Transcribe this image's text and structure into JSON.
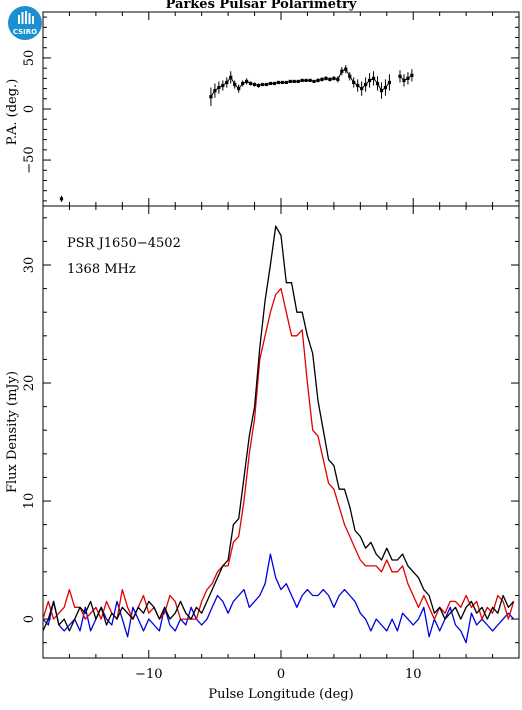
{
  "figure": {
    "title": "Parkes Pulsar Polarimetry",
    "logo_text": "CSIRO"
  },
  "colors": {
    "total": "#000000",
    "linear": "#e00000",
    "circular": "#0000e0",
    "logo": "#1b8fd0"
  },
  "chart_data": [
    {
      "type": "scatter",
      "panel": "polarization-angle",
      "xlabel": "",
      "ylabel": "P.A. (deg.)",
      "xlim": [
        -18,
        18
      ],
      "ylim": [
        -95,
        95
      ],
      "yticks": [
        -50,
        0,
        50
      ],
      "grid": false,
      "points": [
        {
          "x": -16.6,
          "y": -88,
          "err": 3
        },
        {
          "x": -5.3,
          "y": 12,
          "err": 9
        },
        {
          "x": -5.0,
          "y": 18,
          "err": 7
        },
        {
          "x": -4.7,
          "y": 21,
          "err": 6
        },
        {
          "x": -4.4,
          "y": 23,
          "err": 5
        },
        {
          "x": -4.1,
          "y": 26,
          "err": 5
        },
        {
          "x": -3.8,
          "y": 31,
          "err": 6
        },
        {
          "x": -3.5,
          "y": 24,
          "err": 4
        },
        {
          "x": -3.2,
          "y": 20,
          "err": 4
        },
        {
          "x": -2.9,
          "y": 25,
          "err": 3
        },
        {
          "x": -2.6,
          "y": 27,
          "err": 3
        },
        {
          "x": -2.3,
          "y": 25,
          "err": 2
        },
        {
          "x": -2.0,
          "y": 24,
          "err": 2
        },
        {
          "x": -1.7,
          "y": 23,
          "err": 2
        },
        {
          "x": -1.4,
          "y": 24,
          "err": 1
        },
        {
          "x": -1.1,
          "y": 24,
          "err": 1
        },
        {
          "x": -0.8,
          "y": 25,
          "err": 1
        },
        {
          "x": -0.5,
          "y": 25,
          "err": 1
        },
        {
          "x": -0.2,
          "y": 26,
          "err": 1
        },
        {
          "x": 0.1,
          "y": 26,
          "err": 1
        },
        {
          "x": 0.4,
          "y": 26,
          "err": 1
        },
        {
          "x": 0.7,
          "y": 27,
          "err": 1
        },
        {
          "x": 1.0,
          "y": 27,
          "err": 1
        },
        {
          "x": 1.3,
          "y": 27,
          "err": 1
        },
        {
          "x": 1.6,
          "y": 28,
          "err": 1
        },
        {
          "x": 1.9,
          "y": 28,
          "err": 1
        },
        {
          "x": 2.2,
          "y": 28,
          "err": 1
        },
        {
          "x": 2.5,
          "y": 27,
          "err": 1
        },
        {
          "x": 2.8,
          "y": 28,
          "err": 2
        },
        {
          "x": 3.1,
          "y": 29,
          "err": 2
        },
        {
          "x": 3.4,
          "y": 30,
          "err": 2
        },
        {
          "x": 3.7,
          "y": 29,
          "err": 2
        },
        {
          "x": 4.0,
          "y": 30,
          "err": 2
        },
        {
          "x": 4.3,
          "y": 29,
          "err": 3
        },
        {
          "x": 4.6,
          "y": 37,
          "err": 4
        },
        {
          "x": 4.9,
          "y": 39,
          "err": 4
        },
        {
          "x": 5.2,
          "y": 32,
          "err": 4
        },
        {
          "x": 5.5,
          "y": 26,
          "err": 5
        },
        {
          "x": 5.8,
          "y": 23,
          "err": 6
        },
        {
          "x": 6.1,
          "y": 20,
          "err": 7
        },
        {
          "x": 6.4,
          "y": 24,
          "err": 7
        },
        {
          "x": 6.7,
          "y": 28,
          "err": 7
        },
        {
          "x": 7.0,
          "y": 30,
          "err": 7
        },
        {
          "x": 7.3,
          "y": 25,
          "err": 7
        },
        {
          "x": 7.6,
          "y": 18,
          "err": 8
        },
        {
          "x": 7.9,
          "y": 21,
          "err": 8
        },
        {
          "x": 8.2,
          "y": 26,
          "err": 8
        },
        {
          "x": 9.0,
          "y": 32,
          "err": 6
        },
        {
          "x": 9.3,
          "y": 28,
          "err": 6
        },
        {
          "x": 9.6,
          "y": 30,
          "err": 6
        },
        {
          "x": 9.9,
          "y": 33,
          "err": 6
        }
      ],
      "connected_runs": [
        [
          1,
          46
        ],
        [
          47,
          50
        ]
      ]
    },
    {
      "type": "line",
      "panel": "flux-profile",
      "xlabel": "Pulse Longitude (deg)",
      "ylabel": "Flux Density (mJy)",
      "xlim": [
        -18,
        18
      ],
      "ylim": [
        -3.3,
        35
      ],
      "xticks": [
        -10,
        0,
        10
      ],
      "yticks": [
        0,
        10,
        20,
        30
      ],
      "grid": false,
      "annotations": [
        "PSR J1650−4502",
        "1368 MHz"
      ],
      "x_start": -18,
      "x_step": 0.4,
      "series": [
        {
          "key": "total",
          "values": [
            -1,
            0,
            1.5,
            -0.5,
            0,
            -1,
            0,
            1,
            0.5,
            1.5,
            0,
            1,
            -0.5,
            0.5,
            0,
            1,
            0.5,
            0,
            1,
            0.5,
            1.5,
            1,
            0,
            1,
            0,
            0.5,
            1.5,
            0.5,
            0,
            1,
            0.5,
            1.5,
            2.5,
            3.5,
            4.5,
            5,
            8,
            8.5,
            12,
            15.5,
            18,
            23,
            27,
            30,
            33.3,
            32.5,
            28.5,
            28.5,
            26,
            26,
            24,
            22.5,
            18.5,
            16,
            13.5,
            13,
            11,
            11,
            9.5,
            7.5,
            7,
            6,
            6.5,
            5.5,
            5,
            6,
            5,
            5,
            5.5,
            4.5,
            4,
            3.5,
            2.5,
            2,
            0.5,
            1,
            0,
            0.5,
            1,
            0,
            1,
            1.5,
            0.5,
            1,
            0,
            1,
            0.5,
            2,
            1,
            1.5
          ]
        },
        {
          "key": "linear",
          "values": [
            0,
            1.5,
            0,
            0.5,
            1,
            2.5,
            1,
            1,
            0,
            0.5,
            1,
            0,
            1.5,
            0.5,
            0,
            2.5,
            1,
            0,
            1,
            2,
            0.5,
            1,
            0,
            0.5,
            2,
            1.5,
            0,
            0,
            0,
            0,
            1.5,
            2.5,
            3,
            4,
            4.5,
            4.5,
            6.5,
            7,
            10,
            14,
            17,
            22,
            24,
            26,
            27.5,
            28,
            26,
            24,
            24,
            24.5,
            20,
            16,
            15.5,
            13.5,
            11.5,
            11,
            9.5,
            8,
            7,
            6,
            5,
            4.5,
            4.5,
            4.5,
            4,
            5,
            4,
            4,
            4.5,
            3,
            2,
            1,
            2,
            1,
            0,
            1,
            0.5,
            1.5,
            1.5,
            1,
            2,
            1,
            1.5,
            0,
            1,
            0.5,
            2,
            1.5,
            0,
            1.5
          ]
        },
        {
          "key": "circular",
          "values": [
            0,
            -0.5,
            1.5,
            -0.5,
            -1,
            -0.5,
            0,
            -1,
            1,
            -1,
            0,
            1,
            0,
            -0.5,
            1.5,
            0,
            -1.5,
            1,
            0,
            -1,
            0,
            -0.5,
            -1,
            1,
            -0.5,
            -1,
            0,
            -0.5,
            1,
            0,
            -0.5,
            0,
            1,
            2,
            1.5,
            0.5,
            1.5,
            2,
            2.5,
            1,
            1.5,
            2,
            3,
            5.5,
            3.5,
            2.5,
            3,
            2,
            1,
            2,
            2.5,
            2,
            2,
            2.5,
            2,
            1,
            2,
            2.5,
            2,
            1.5,
            0.5,
            0,
            -1,
            0,
            -0.5,
            -1,
            0,
            -1,
            0.5,
            0,
            -0.5,
            0,
            1,
            -1.5,
            0,
            -1,
            0,
            1,
            -0.5,
            -1,
            -2,
            0.5,
            -0.5,
            0,
            -0.5,
            -1,
            -0.5,
            0,
            0.5,
            0
          ]
        }
      ]
    }
  ]
}
